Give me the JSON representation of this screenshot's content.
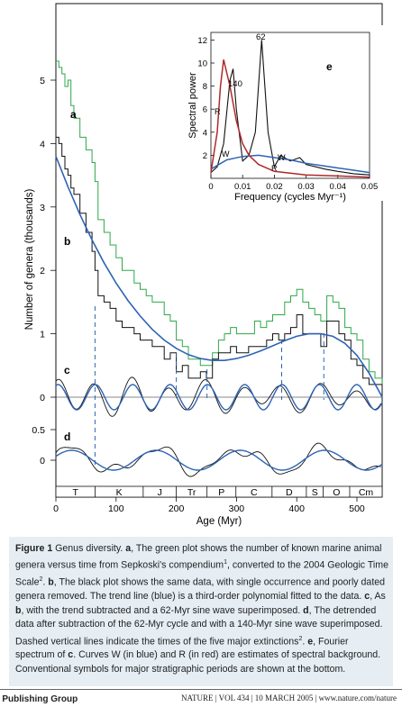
{
  "figure": {
    "y_axis_label": "Number of genera (thousands)",
    "x_axis_label": "Age (Myr)",
    "x_ticks": [
      "0",
      "100",
      "200",
      "300",
      "400",
      "500"
    ],
    "y_ticks": [
      "0",
      "1",
      "2",
      "3",
      "4",
      "5"
    ],
    "c_ticks": [
      "0"
    ],
    "d_ticks": [
      "0.5",
      "0"
    ],
    "panel_letters": {
      "a": "a",
      "b": "b",
      "c": "c",
      "d": "d",
      "e": "e"
    },
    "periods": [
      "T",
      "K",
      "J",
      "Tr",
      "P",
      "C",
      "D",
      "S",
      "O",
      "Cm"
    ],
    "colors": {
      "green": "#2ea84a",
      "black": "#111111",
      "blue": "#2e64b4",
      "red": "#b02a2a"
    }
  },
  "inset": {
    "y_label": "Spectral power",
    "x_label": "Frequency (cycles Myr⁻¹)",
    "x_ticks": [
      "0",
      "0.01",
      "0.02",
      "0.03",
      "0.04",
      "0.05"
    ],
    "y_ticks": [
      "2",
      "4",
      "6",
      "8",
      "10",
      "12"
    ],
    "peak_labels": {
      "p62": "62",
      "p140": "140"
    },
    "curve_labels": {
      "R1": "R",
      "W1": "W",
      "R2": "R",
      "W2": "W"
    }
  },
  "chart_data": [
    {
      "type": "line",
      "title": "",
      "xlabel": "Age (Myr)",
      "ylabel": "Number of genera (thousands)",
      "xlim": [
        0,
        542
      ],
      "ylim": [
        0,
        5.5
      ],
      "series": [
        {
          "name": "a",
          "x": [
            0,
            5,
            10,
            15,
            20,
            25,
            30,
            40,
            50,
            60,
            65,
            70,
            80,
            90,
            100,
            110,
            120,
            130,
            140,
            150,
            160,
            170,
            180,
            190,
            200,
            210,
            220,
            230,
            240,
            250,
            260,
            270,
            280,
            290,
            300,
            310,
            320,
            330,
            340,
            350,
            360,
            370,
            380,
            390,
            400,
            410,
            420,
            430,
            440,
            450,
            460,
            470,
            480,
            490,
            500,
            510,
            520,
            530,
            542
          ],
          "y": [
            5.3,
            5.2,
            5.1,
            4.9,
            5.0,
            4.6,
            4.4,
            4.1,
            3.9,
            3.7,
            3.4,
            2.8,
            2.6,
            2.4,
            2.2,
            2.0,
            2.0,
            1.8,
            1.7,
            1.6,
            1.5,
            1.5,
            1.3,
            1.2,
            0.9,
            0.8,
            0.6,
            0.6,
            0.5,
            0.5,
            0.7,
            0.9,
            1.0,
            1.1,
            1.0,
            1.0,
            1.0,
            1.2,
            1.1,
            1.2,
            1.3,
            1.3,
            1.5,
            1.6,
            1.7,
            1.5,
            1.4,
            1.3,
            1.2,
            1.6,
            1.5,
            1.4,
            1.1,
            1.0,
            0.9,
            0.6,
            0.4,
            0.3,
            0.2
          ]
        },
        {
          "name": "b",
          "x": [
            0,
            5,
            10,
            15,
            20,
            25,
            30,
            40,
            50,
            60,
            65,
            70,
            80,
            90,
            100,
            110,
            120,
            130,
            140,
            150,
            160,
            170,
            180,
            190,
            200,
            210,
            220,
            230,
            240,
            250,
            260,
            270,
            280,
            290,
            300,
            310,
            320,
            330,
            340,
            350,
            360,
            370,
            380,
            390,
            400,
            410,
            420,
            430,
            440,
            450,
            460,
            470,
            480,
            490,
            500,
            510,
            520,
            530,
            542
          ],
          "y": [
            4.1,
            4.0,
            3.8,
            3.6,
            3.5,
            3.3,
            3.2,
            2.9,
            2.6,
            2.3,
            2.0,
            1.6,
            1.5,
            1.4,
            1.2,
            1.1,
            1.1,
            1.0,
            0.9,
            0.9,
            0.8,
            0.8,
            0.6,
            0.7,
            0.4,
            0.5,
            0.3,
            0.3,
            0.4,
            0.3,
            0.6,
            0.7,
            0.7,
            0.8,
            0.7,
            0.7,
            0.8,
            0.8,
            0.8,
            0.9,
            1.0,
            0.9,
            1.0,
            1.1,
            1.3,
            1.0,
            1.0,
            1.0,
            0.8,
            1.2,
            1.2,
            1.0,
            0.9,
            0.6,
            0.5,
            0.3,
            0.2,
            0.2,
            0.2
          ]
        },
        {
          "name": "trend",
          "x": [
            0,
            20,
            40,
            60,
            80,
            100,
            120,
            140,
            160,
            180,
            200,
            220,
            240,
            260,
            280,
            300,
            320,
            340,
            360,
            380,
            400,
            420,
            440,
            460,
            480,
            500,
            520,
            542
          ],
          "y": [
            3.8,
            3.32,
            2.88,
            2.48,
            2.12,
            1.8,
            1.52,
            1.28,
            1.07,
            0.9,
            0.77,
            0.67,
            0.61,
            0.58,
            0.58,
            0.61,
            0.66,
            0.73,
            0.81,
            0.89,
            0.96,
            1.0,
            1.0,
            0.96,
            0.85,
            0.66,
            0.38,
            0.0
          ]
        }
      ]
    },
    {
      "type": "line",
      "title": "",
      "xlabel": "Frequency (cycles Myr⁻¹)",
      "ylabel": "Spectral power",
      "xlim": [
        0,
        0.05
      ],
      "ylim": [
        0,
        12.5
      ],
      "series": [
        {
          "name": "c",
          "x": [
            0,
            0.002,
            0.004,
            0.006,
            0.007,
            0.008,
            0.01,
            0.012,
            0.014,
            0.016,
            0.018,
            0.02,
            0.022,
            0.025,
            0.028,
            0.03,
            0.033,
            0.036,
            0.04,
            0.045,
            0.05
          ],
          "y": [
            0.5,
            1.0,
            3.0,
            8.5,
            9.5,
            6.0,
            1.5,
            2.0,
            4.0,
            12.0,
            4.0,
            1.0,
            2.0,
            1.5,
            1.8,
            1.2,
            1.0,
            0.8,
            0.6,
            0.4,
            0.3
          ]
        },
        {
          "name": "W",
          "x": [
            0,
            0.005,
            0.01,
            0.015,
            0.02,
            0.025,
            0.03,
            0.035,
            0.04,
            0.045,
            0.05
          ],
          "y": [
            0.8,
            1.6,
            1.9,
            2.0,
            1.8,
            1.6,
            1.3,
            1.1,
            0.9,
            0.7,
            0.5
          ]
        },
        {
          "name": "R",
          "x": [
            0,
            0.002,
            0.003,
            0.004,
            0.006,
            0.008,
            0.01,
            0.012,
            0.015,
            0.02,
            0.03,
            0.04,
            0.05
          ],
          "y": [
            0.5,
            4.0,
            8.0,
            10.3,
            8.0,
            5.0,
            3.0,
            2.0,
            1.2,
            0.6,
            0.3,
            0.2,
            0.1
          ]
        }
      ]
    }
  ],
  "caption": {
    "fig_label": "Figure 1",
    "fig_title": " Genus diversity. ",
    "a": "a",
    "a_text": ", The green plot shows the number of known marine animal genera versus time from Sepkoski's compendium",
    "sup1": "1",
    "a_text2": ", converted to the 2004 Geologic Time Scale",
    "sup2": "2",
    "dot1": ". ",
    "b": "b",
    "b_text": ", The black plot shows the same data, with single occurrence and poorly dated genera removed. The trend line (blue) is a third-order polynomial fitted to the data. ",
    "c": "c",
    "c_text": ", As ",
    "b2": "b",
    "c_text2": ", with the trend subtracted and a 62-Myr sine wave superimposed. ",
    "d": "d",
    "d_text": ", The detrended data after subtraction of the 62-Myr cycle and with a 140-Myr sine wave superimposed. Dashed vertical lines indicate the times of the five major extinctions",
    "sup3": "2",
    "e_pre": ". ",
    "e": "e",
    "e_text": ", Fourier spectrum of ",
    "c2": "c",
    "e_text2": ". Curves W (in blue) and R (in red) are estimates of spectral background. Conventional symbols for major stratigraphic periods are shown at the bottom."
  },
  "footer": {
    "left": "e Publishing Group",
    "right": "NATURE | VOL 434 | 10 MARCH 2005 | www.nature.com/nature"
  }
}
